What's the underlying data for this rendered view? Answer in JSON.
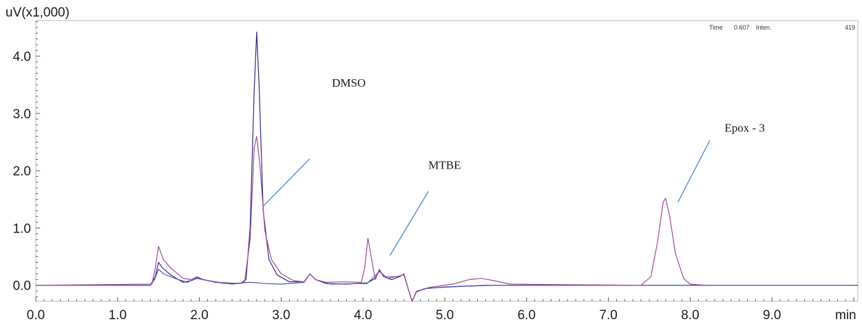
{
  "chart_data": {
    "type": "line",
    "title": "",
    "ylabel": "uV(x1,000)",
    "xlabel": "min",
    "xlim": [
      0.0,
      10.05
    ],
    "ylim": [
      -0.28,
      4.62
    ],
    "x_ticks": [
      "0.0",
      "1.0",
      "2.0",
      "3.0",
      "4.0",
      "5.0",
      "6.0",
      "7.0",
      "8.0",
      "9.0"
    ],
    "y_ticks": [
      "0.0",
      "1.0",
      "2.0",
      "3.0",
      "4.0"
    ],
    "grid": false,
    "readout": {
      "time_label": "Time",
      "time_value": "0.607",
      "inten_label": "Inten.",
      "inten_value": "419"
    },
    "series": [
      {
        "color": "#2a2a78",
        "points": [
          [
            0.0,
            0.0
          ],
          [
            1.4,
            0.0
          ],
          [
            1.46,
            0.15
          ],
          [
            1.5,
            0.4
          ],
          [
            1.55,
            0.3
          ],
          [
            1.65,
            0.18
          ],
          [
            1.8,
            0.05
          ],
          [
            1.9,
            0.08
          ],
          [
            1.97,
            0.13
          ],
          [
            2.05,
            0.1
          ],
          [
            2.2,
            0.05
          ],
          [
            2.5,
            0.03
          ],
          [
            2.57,
            0.1
          ],
          [
            2.62,
            1.0
          ],
          [
            2.67,
            3.4
          ],
          [
            2.7,
            4.42
          ],
          [
            2.73,
            3.5
          ],
          [
            2.78,
            1.3
          ],
          [
            2.85,
            0.45
          ],
          [
            2.95,
            0.18
          ],
          [
            3.1,
            0.06
          ],
          [
            3.28,
            0.06
          ],
          [
            3.35,
            0.2
          ],
          [
            3.42,
            0.1
          ],
          [
            3.55,
            0.03
          ],
          [
            3.8,
            0.02
          ],
          [
            4.05,
            0.04
          ],
          [
            4.15,
            0.12
          ],
          [
            4.2,
            0.26
          ],
          [
            4.27,
            0.14
          ],
          [
            4.35,
            0.1
          ],
          [
            4.45,
            0.15
          ],
          [
            4.5,
            0.2
          ],
          [
            4.55,
            -0.05
          ],
          [
            4.6,
            -0.28
          ],
          [
            4.65,
            -0.12
          ],
          [
            4.75,
            -0.06
          ],
          [
            5.0,
            -0.03
          ],
          [
            5.5,
            0.0
          ],
          [
            7.5,
            0.0
          ],
          [
            10.05,
            0.0
          ]
        ]
      },
      {
        "color": "#4a55b0",
        "points": [
          [
            0.0,
            0.0
          ],
          [
            1.4,
            0.0
          ],
          [
            1.45,
            0.1
          ],
          [
            1.5,
            0.28
          ],
          [
            1.56,
            0.2
          ],
          [
            1.7,
            0.12
          ],
          [
            1.85,
            0.05
          ],
          [
            1.97,
            0.12
          ],
          [
            2.1,
            0.08
          ],
          [
            2.4,
            0.02
          ],
          [
            2.58,
            0.05
          ],
          [
            2.65,
            0.05
          ],
          [
            2.8,
            0.03
          ],
          [
            3.0,
            0.02
          ],
          [
            3.28,
            0.05
          ],
          [
            3.35,
            0.2
          ],
          [
            3.42,
            0.1
          ],
          [
            3.6,
            0.02
          ],
          [
            4.05,
            0.03
          ],
          [
            4.2,
            0.24
          ],
          [
            4.3,
            0.12
          ],
          [
            4.5,
            0.18
          ],
          [
            4.55,
            -0.05
          ],
          [
            4.6,
            -0.28
          ],
          [
            4.66,
            -0.1
          ],
          [
            4.8,
            -0.05
          ],
          [
            5.2,
            -0.02
          ],
          [
            5.6,
            0.0
          ],
          [
            10.05,
            0.0
          ]
        ]
      },
      {
        "color": "#9a4a9a",
        "points": [
          [
            0.0,
            0.0
          ],
          [
            1.42,
            0.02
          ],
          [
            1.46,
            0.3
          ],
          [
            1.5,
            0.68
          ],
          [
            1.56,
            0.45
          ],
          [
            1.65,
            0.3
          ],
          [
            1.8,
            0.12
          ],
          [
            1.9,
            0.1
          ],
          [
            1.97,
            0.15
          ],
          [
            2.05,
            0.1
          ],
          [
            2.3,
            0.03
          ],
          [
            2.55,
            0.04
          ],
          [
            2.62,
            0.8
          ],
          [
            2.67,
            2.4
          ],
          [
            2.7,
            2.6
          ],
          [
            2.74,
            2.1
          ],
          [
            2.8,
            0.95
          ],
          [
            2.88,
            0.45
          ],
          [
            3.0,
            0.2
          ],
          [
            3.15,
            0.08
          ],
          [
            3.28,
            0.06
          ],
          [
            3.35,
            0.2
          ],
          [
            3.42,
            0.1
          ],
          [
            3.55,
            0.05
          ],
          [
            3.75,
            0.06
          ],
          [
            3.98,
            0.05
          ],
          [
            4.02,
            0.3
          ],
          [
            4.06,
            0.82
          ],
          [
            4.1,
            0.5
          ],
          [
            4.15,
            0.1
          ],
          [
            4.2,
            0.28
          ],
          [
            4.25,
            0.15
          ],
          [
            4.45,
            0.15
          ],
          [
            4.5,
            0.2
          ],
          [
            4.55,
            -0.05
          ],
          [
            4.6,
            -0.28
          ],
          [
            4.65,
            -0.12
          ],
          [
            4.8,
            -0.04
          ],
          [
            5.1,
            0.02
          ],
          [
            5.3,
            0.1
          ],
          [
            5.45,
            0.12
          ],
          [
            5.6,
            0.08
          ],
          [
            5.8,
            0.02
          ],
          [
            6.5,
            0.01
          ],
          [
            7.4,
            0.0
          ],
          [
            7.52,
            0.15
          ],
          [
            7.6,
            0.75
          ],
          [
            7.67,
            1.45
          ],
          [
            7.7,
            1.52
          ],
          [
            7.75,
            1.2
          ],
          [
            7.82,
            0.55
          ],
          [
            7.92,
            0.12
          ],
          [
            8.0,
            0.02
          ],
          [
            8.2,
            0.0
          ],
          [
            10.05,
            0.0
          ]
        ]
      }
    ],
    "annotations": [
      {
        "text": "DMSO",
        "x": 3.62,
        "y": 3.47,
        "line": [
          [
            3.35,
            2.21
          ],
          [
            2.78,
            1.38
          ]
        ]
      },
      {
        "text": "MTBE",
        "x": 4.8,
        "y": 2.03,
        "line": [
          [
            4.8,
            1.64
          ],
          [
            4.33,
            0.52
          ]
        ]
      },
      {
        "text": "Epox - 3",
        "x": 8.42,
        "y": 2.68,
        "line": [
          [
            8.24,
            2.53
          ],
          [
            7.85,
            1.45
          ]
        ]
      }
    ],
    "annotation_color": "#4f87c9"
  }
}
